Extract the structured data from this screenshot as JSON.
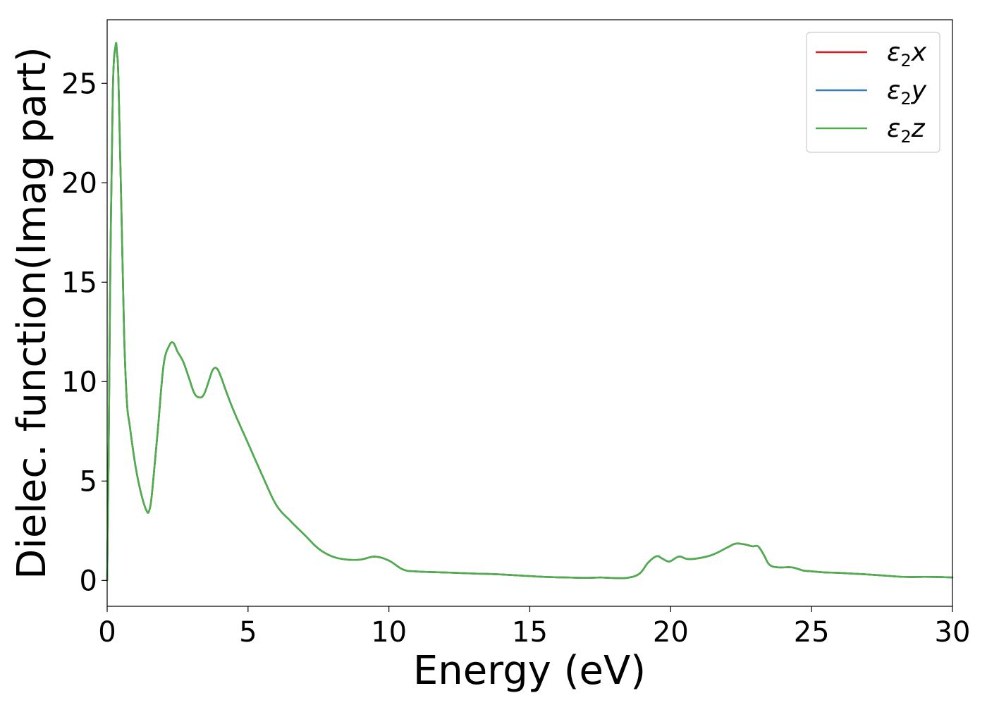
{
  "chart_data": {
    "type": "line",
    "xlabel": "Energy (eV)",
    "ylabel": "Dielec. function(Imag part)",
    "xlim": [
      0,
      30
    ],
    "ylim": [
      -1.3,
      28.2
    ],
    "xticks": [
      0,
      5,
      10,
      15,
      20,
      25,
      30
    ],
    "yticks": [
      0,
      5,
      10,
      15,
      20,
      25
    ],
    "grid": false,
    "legend_position": "top-right",
    "series": [
      {
        "name": "ε2x",
        "symbol": "ε",
        "sub": "2",
        "suffix": "x",
        "color": "#e41a1c"
      },
      {
        "name": "ε2y",
        "symbol": "ε",
        "sub": "2",
        "suffix": "y",
        "color": "#377eb8"
      },
      {
        "name": "ε2z",
        "symbol": "ε",
        "sub": "2",
        "suffix": "z",
        "color": "#4daf4a"
      }
    ],
    "x": [
      0,
      0.05,
      0.1,
      0.2,
      0.3,
      0.35,
      0.4,
      0.5,
      0.6,
      0.7,
      0.8,
      1.0,
      1.2,
      1.4,
      1.5,
      1.6,
      1.8,
      2.0,
      2.2,
      2.35,
      2.5,
      2.7,
      2.9,
      3.1,
      3.3,
      3.45,
      3.6,
      3.75,
      3.9,
      4.05,
      4.2,
      4.5,
      5.0,
      5.5,
      6.0,
      6.5,
      7.0,
      7.5,
      8.0,
      8.5,
      9.0,
      9.5,
      10.0,
      10.5,
      11.0,
      12.0,
      13.0,
      14.0,
      15.0,
      15.5,
      16.0,
      17.0,
      17.5,
      18.0,
      18.5,
      18.9,
      19.2,
      19.5,
      19.7,
      19.95,
      20.2,
      20.35,
      20.6,
      21.0,
      21.5,
      22.0,
      22.3,
      22.6,
      22.9,
      23.1,
      23.3,
      23.5,
      23.8,
      24.3,
      24.7,
      25.0,
      25.5,
      26.0,
      27.0,
      28.0,
      28.5,
      29.0,
      29.5,
      30.0
    ],
    "y": [
      0,
      6,
      14,
      24.5,
      26.9,
      26.5,
      25.2,
      19.0,
      12.5,
      9.0,
      7.8,
      5.8,
      4.4,
      3.5,
      3.55,
      4.5,
      7.6,
      10.8,
      11.8,
      11.95,
      11.5,
      11.0,
      10.2,
      9.4,
      9.2,
      9.4,
      10.0,
      10.6,
      10.65,
      10.2,
      9.6,
      8.5,
      6.9,
      5.3,
      3.8,
      3.0,
      2.3,
      1.6,
      1.2,
      1.05,
      1.05,
      1.2,
      1.0,
      0.55,
      0.45,
      0.4,
      0.35,
      0.3,
      0.22,
      0.18,
      0.16,
      0.13,
      0.15,
      0.12,
      0.14,
      0.35,
      0.9,
      1.22,
      1.1,
      0.95,
      1.15,
      1.2,
      1.08,
      1.12,
      1.3,
      1.65,
      1.85,
      1.82,
      1.72,
      1.72,
      1.3,
      0.8,
      0.66,
      0.66,
      0.5,
      0.46,
      0.4,
      0.38,
      0.3,
      0.2,
      0.17,
      0.18,
      0.17,
      0.15
    ]
  }
}
